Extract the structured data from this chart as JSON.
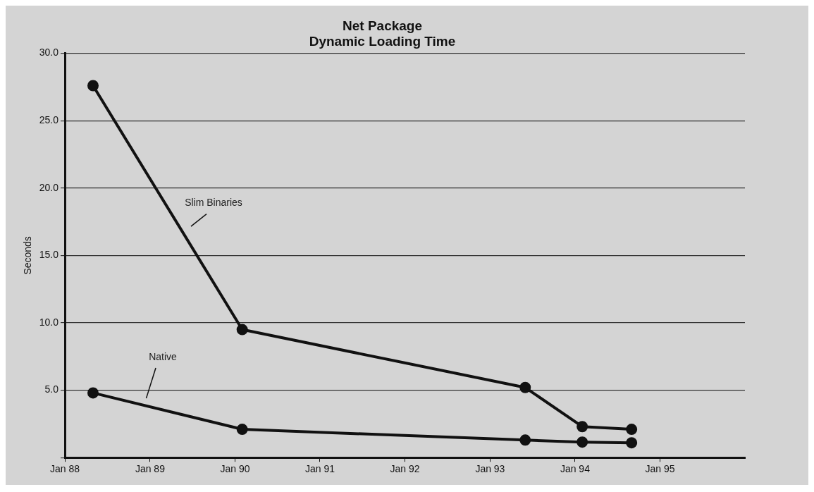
{
  "chart_data": {
    "type": "line",
    "title": "Net Package\nDynamic Loading Time",
    "ylabel": "Seconds",
    "xlim": [
      "1988-01",
      "1996-01"
    ],
    "xticks": [
      {
        "value": "1988-01",
        "label": "Jan 88"
      },
      {
        "value": "1989-01",
        "label": "Jan 89"
      },
      {
        "value": "1990-01",
        "label": "Jan 90"
      },
      {
        "value": "1991-01",
        "label": "Jan 91"
      },
      {
        "value": "1992-01",
        "label": "Jan 92"
      },
      {
        "value": "1993-01",
        "label": "Jan 93"
      },
      {
        "value": "1994-01",
        "label": "Jan 94"
      },
      {
        "value": "1995-01",
        "label": "Jan 95"
      }
    ],
    "ylim": [
      0,
      30
    ],
    "yticks": [
      {
        "value": 0,
        "label": null
      },
      {
        "value": 5,
        "label": "5.0"
      },
      {
        "value": 10,
        "label": "10.0"
      },
      {
        "value": 15,
        "label": "15.0"
      },
      {
        "value": 20,
        "label": "20.0"
      },
      {
        "value": 25,
        "label": "25.0"
      },
      {
        "value": 30,
        "label": "30.0"
      }
    ],
    "series": [
      {
        "name": "Slim Binaries",
        "color": "#111111",
        "x": [
          "1988-05",
          "1990-02",
          "1993-06",
          "1994-02",
          "1994-09"
        ],
        "values": [
          27.6,
          9.5,
          5.2,
          2.3,
          2.1
        ]
      },
      {
        "name": "Native",
        "color": "#111111",
        "x": [
          "1988-05",
          "1990-02",
          "1993-06",
          "1994-02",
          "1994-09"
        ],
        "values": [
          4.8,
          2.1,
          1.3,
          1.15,
          1.1
        ]
      }
    ],
    "grid": "y",
    "legend": false,
    "marker": "circle",
    "line_style": "solid"
  }
}
